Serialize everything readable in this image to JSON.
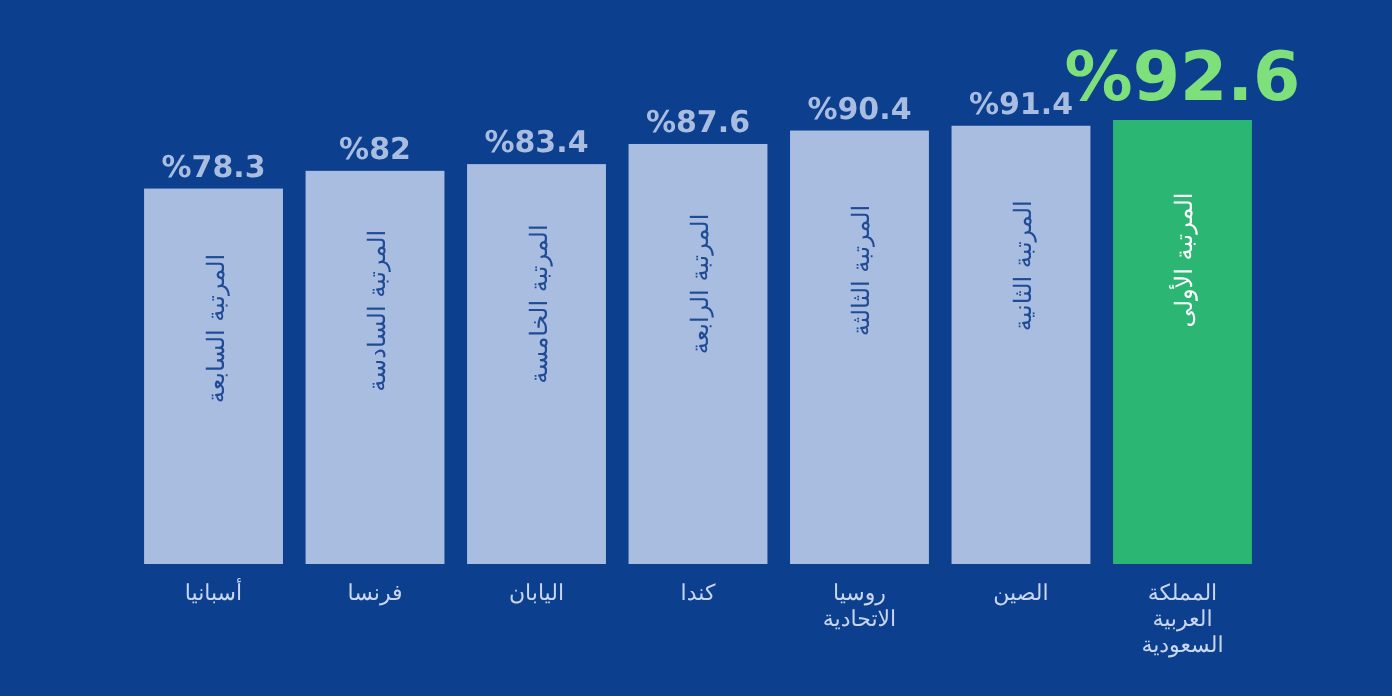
{
  "chart_data": {
    "type": "bar",
    "categories": [
      "أسبانيا",
      "فرنسا",
      "اليابان",
      "كندا",
      "روسيا الاتحادية",
      "الصين",
      "المملكة العربية السعودية"
    ],
    "values": [
      78.3,
      82,
      83.4,
      87.6,
      90.4,
      91.4,
      92.6
    ],
    "value_labels": [
      "%78.3",
      "%82",
      "%83.4",
      "%87.6",
      "%90.4",
      "%91.4",
      "%92.6"
    ],
    "colors": [
      "#a9bde0",
      "#a9bde0",
      "#a9bde0",
      "#a9bde0",
      "#a9bde0",
      "#a9bde0",
      "#2bb673"
    ],
    "tick_labels": "x",
    "annotations": [
      "المرتبة السابعة",
      "المرتبة السادسة",
      "المرتبة الخامسة",
      "المرتبة الرابعة",
      "المرتبة الثالثة",
      "المرتبة الثانية",
      "المرتبة الأولى"
    ]
  }
}
